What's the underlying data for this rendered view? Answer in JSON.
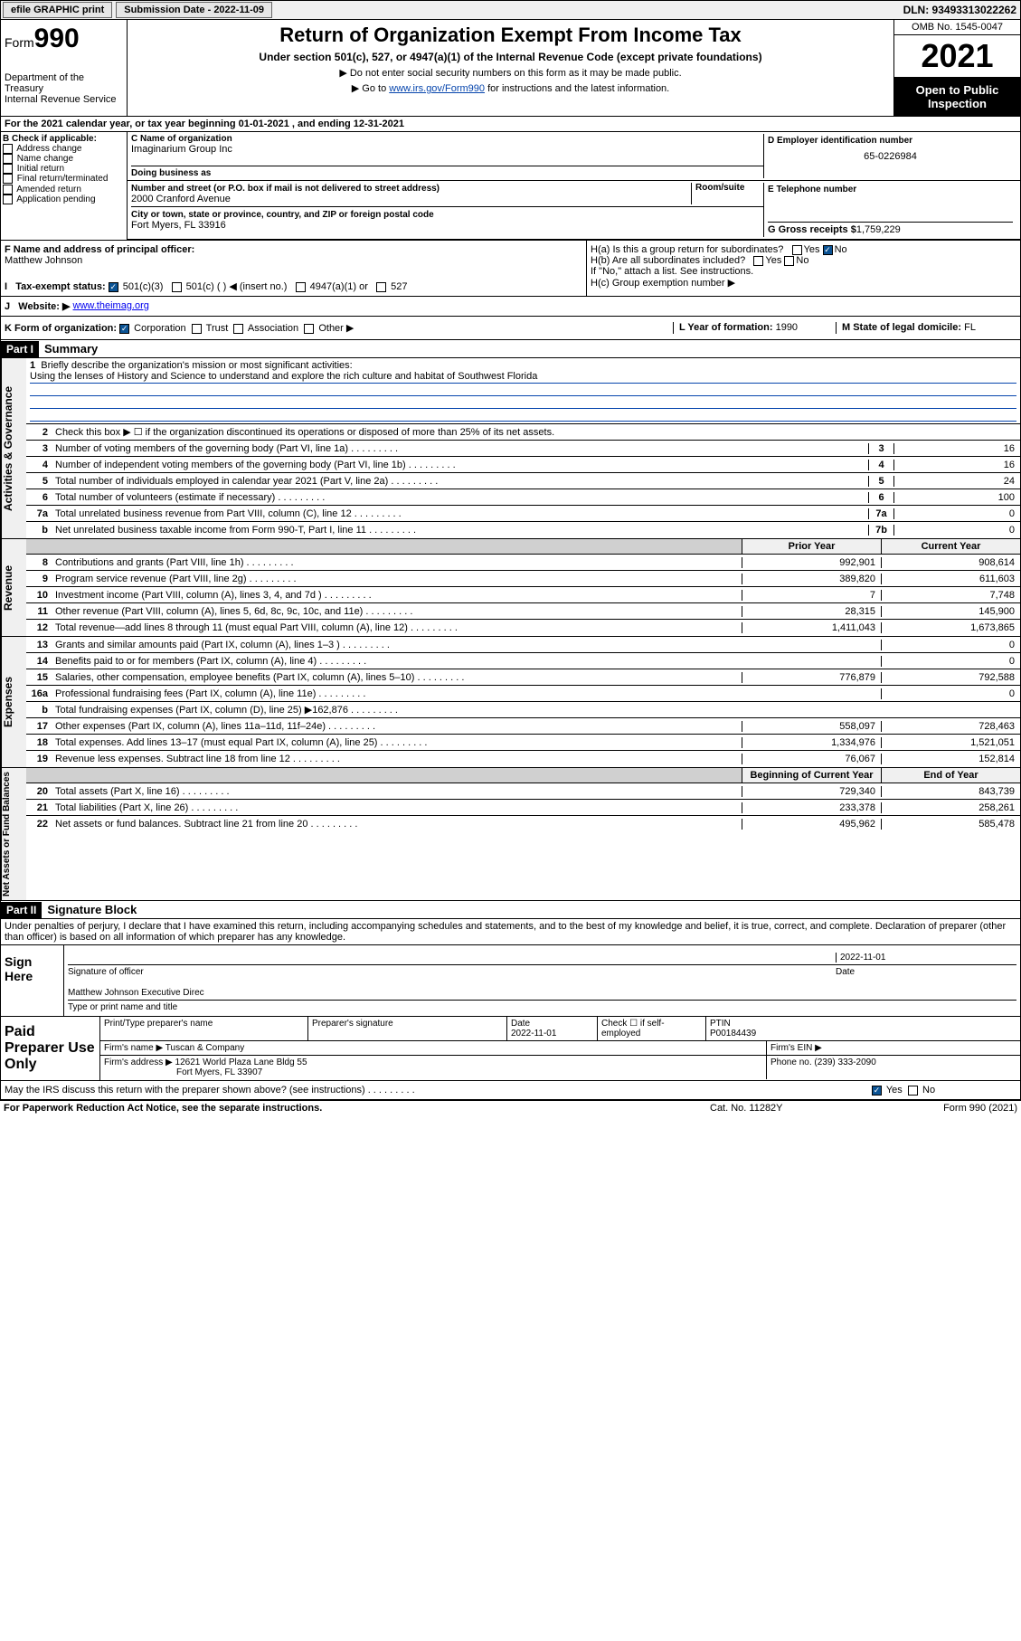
{
  "topbar": {
    "efile": "efile GRAPHIC print",
    "submission_label": "Submission Date - 2022-11-09",
    "dln": "DLN: 93493313022262"
  },
  "header": {
    "form_label": "Form",
    "form_number": "990",
    "dept": "Department of the Treasury",
    "irs": "Internal Revenue Service",
    "title": "Return of Organization Exempt From Income Tax",
    "subtitle": "Under section 501(c), 527, or 4947(a)(1) of the Internal Revenue Code (except private foundations)",
    "instr1": "▶ Do not enter social security numbers on this form as it may be made public.",
    "instr2_pre": "▶ Go to ",
    "instr2_link": "www.irs.gov/Form990",
    "instr2_post": " for instructions and the latest information.",
    "omb": "OMB No. 1545-0047",
    "year": "2021",
    "inspection": "Open to Public Inspection"
  },
  "section_a": {
    "line_a": "For the 2021 calendar year, or tax year beginning 01-01-2021   , and ending 12-31-2021",
    "b_label": "B Check if applicable:",
    "b_opts": [
      "Address change",
      "Name change",
      "Initial return",
      "Final return/terminated",
      "Amended return",
      "Application pending"
    ],
    "c_label": "C Name of organization",
    "c_name": "Imaginarium Group Inc",
    "dba_label": "Doing business as",
    "addr_label": "Number and street (or P.O. box if mail is not delivered to street address)",
    "room_label": "Room/suite",
    "addr": "2000 Cranford Avenue",
    "city_label": "City or town, state or province, country, and ZIP or foreign postal code",
    "city": "Fort Myers, FL  33916",
    "d_label": "D Employer identification number",
    "d_val": "65-0226984",
    "e_label": "E Telephone number",
    "g_label": "G Gross receipts $",
    "g_val": "1,759,229"
  },
  "section_fk": {
    "f_label": "F  Name and address of principal officer:",
    "f_name": "Matthew Johnson",
    "ha_label": "H(a)  Is this a group return for subordinates?",
    "hb_label": "H(b)  Are all subordinates included?",
    "hb_note": "If \"No,\" attach a list. See instructions.",
    "hc_label": "H(c)  Group exemption number ▶",
    "i_label": "Tax-exempt status:",
    "i_opts": [
      "501(c)(3)",
      "501(c) (  ) ◀ (insert no.)",
      "4947(a)(1) or",
      "527"
    ],
    "j_label": "Website: ▶",
    "j_val": "www.theimag.org",
    "k_label": "K Form of organization:",
    "k_opts": [
      "Corporation",
      "Trust",
      "Association",
      "Other ▶"
    ],
    "l_label": "L Year of formation:",
    "l_val": "1990",
    "m_label": "M State of legal domicile:",
    "m_val": "FL",
    "yes": "Yes",
    "no": "No"
  },
  "part1": {
    "header": "Part I",
    "title": "Summary",
    "q1": "Briefly describe the organization's mission or most significant activities:",
    "mission": "Using the lenses of History and Science to understand and explore the rich culture and habitat of Southwest Florida",
    "q2": "Check this box ▶ ☐  if the organization discontinued its operations or disposed of more than 25% of its net assets.",
    "governance": {
      "label": "Activities & Governance",
      "rows": [
        {
          "n": "3",
          "t": "Number of voting members of the governing body (Part VI, line 1a)",
          "box": "3",
          "v": "16"
        },
        {
          "n": "4",
          "t": "Number of independent voting members of the governing body (Part VI, line 1b)",
          "box": "4",
          "v": "16"
        },
        {
          "n": "5",
          "t": "Total number of individuals employed in calendar year 2021 (Part V, line 2a)",
          "box": "5",
          "v": "24"
        },
        {
          "n": "6",
          "t": "Total number of volunteers (estimate if necessary)",
          "box": "6",
          "v": "100"
        },
        {
          "n": "7a",
          "t": "Total unrelated business revenue from Part VIII, column (C), line 12",
          "box": "7a",
          "v": "0"
        },
        {
          "n": "b",
          "t": "Net unrelated business taxable income from Form 990-T, Part I, line 11",
          "box": "7b",
          "v": "0"
        }
      ]
    },
    "revenue": {
      "label": "Revenue",
      "col1": "Prior Year",
      "col2": "Current Year",
      "rows": [
        {
          "n": "8",
          "t": "Contributions and grants (Part VIII, line 1h)",
          "p": "992,901",
          "c": "908,614"
        },
        {
          "n": "9",
          "t": "Program service revenue (Part VIII, line 2g)",
          "p": "389,820",
          "c": "611,603"
        },
        {
          "n": "10",
          "t": "Investment income (Part VIII, column (A), lines 3, 4, and 7d )",
          "p": "7",
          "c": "7,748"
        },
        {
          "n": "11",
          "t": "Other revenue (Part VIII, column (A), lines 5, 6d, 8c, 9c, 10c, and 11e)",
          "p": "28,315",
          "c": "145,900"
        },
        {
          "n": "12",
          "t": "Total revenue—add lines 8 through 11 (must equal Part VIII, column (A), line 12)",
          "p": "1,411,043",
          "c": "1,673,865"
        }
      ]
    },
    "expenses": {
      "label": "Expenses",
      "rows": [
        {
          "n": "13",
          "t": "Grants and similar amounts paid (Part IX, column (A), lines 1–3 )",
          "p": "",
          "c": "0"
        },
        {
          "n": "14",
          "t": "Benefits paid to or for members (Part IX, column (A), line 4)",
          "p": "",
          "c": "0"
        },
        {
          "n": "15",
          "t": "Salaries, other compensation, employee benefits (Part IX, column (A), lines 5–10)",
          "p": "776,879",
          "c": "792,588"
        },
        {
          "n": "16a",
          "t": "Professional fundraising fees (Part IX, column (A), line 11e)",
          "p": "",
          "c": "0"
        },
        {
          "n": "b",
          "t": "Total fundraising expenses (Part IX, column (D), line 25) ▶162,876",
          "p": "grey",
          "c": "grey"
        },
        {
          "n": "17",
          "t": "Other expenses (Part IX, column (A), lines 11a–11d, 11f–24e)",
          "p": "558,097",
          "c": "728,463"
        },
        {
          "n": "18",
          "t": "Total expenses. Add lines 13–17 (must equal Part IX, column (A), line 25)",
          "p": "1,334,976",
          "c": "1,521,051"
        },
        {
          "n": "19",
          "t": "Revenue less expenses. Subtract line 18 from line 12",
          "p": "76,067",
          "c": "152,814"
        }
      ]
    },
    "netassets": {
      "label": "Net Assets or Fund Balances",
      "col1": "Beginning of Current Year",
      "col2": "End of Year",
      "rows": [
        {
          "n": "20",
          "t": "Total assets (Part X, line 16)",
          "p": "729,340",
          "c": "843,739"
        },
        {
          "n": "21",
          "t": "Total liabilities (Part X, line 26)",
          "p": "233,378",
          "c": "258,261"
        },
        {
          "n": "22",
          "t": "Net assets or fund balances. Subtract line 21 from line 20",
          "p": "495,962",
          "c": "585,478"
        }
      ]
    }
  },
  "part2": {
    "header": "Part II",
    "title": "Signature Block",
    "declaration": "Under penalties of perjury, I declare that I have examined this return, including accompanying schedules and statements, and to the best of my knowledge and belief, it is true, correct, and complete. Declaration of preparer (other than officer) is based on all information of which preparer has any knowledge.",
    "sign_here": "Sign Here",
    "sig_officer": "Signature of officer",
    "sig_date": "2022-11-01",
    "date_label": "Date",
    "officer_name": "Matthew Johnson  Executive Direc",
    "officer_type": "Type or print name and title",
    "paid_prep": "Paid Preparer Use Only",
    "prep_name_label": "Print/Type preparer's name",
    "prep_sig_label": "Preparer's signature",
    "prep_date_label": "Date",
    "prep_date": "2022-11-01",
    "check_if": "Check ☐ if self-employed",
    "ptin_label": "PTIN",
    "ptin": "P00184439",
    "firm_name_label": "Firm's name   ▶",
    "firm_name": "Tuscan & Company",
    "firm_ein_label": "Firm's EIN ▶",
    "firm_addr_label": "Firm's address ▶",
    "firm_addr1": "12621 World Plaza Lane Bldg 55",
    "firm_addr2": "Fort Myers, FL  33907",
    "phone_label": "Phone no.",
    "phone": "(239) 333-2090",
    "discuss": "May the IRS discuss this return with the preparer shown above? (see instructions)"
  },
  "footer": {
    "paperwork": "For Paperwork Reduction Act Notice, see the separate instructions.",
    "cat": "Cat. No. 11282Y",
    "form": "Form 990 (2021)"
  }
}
